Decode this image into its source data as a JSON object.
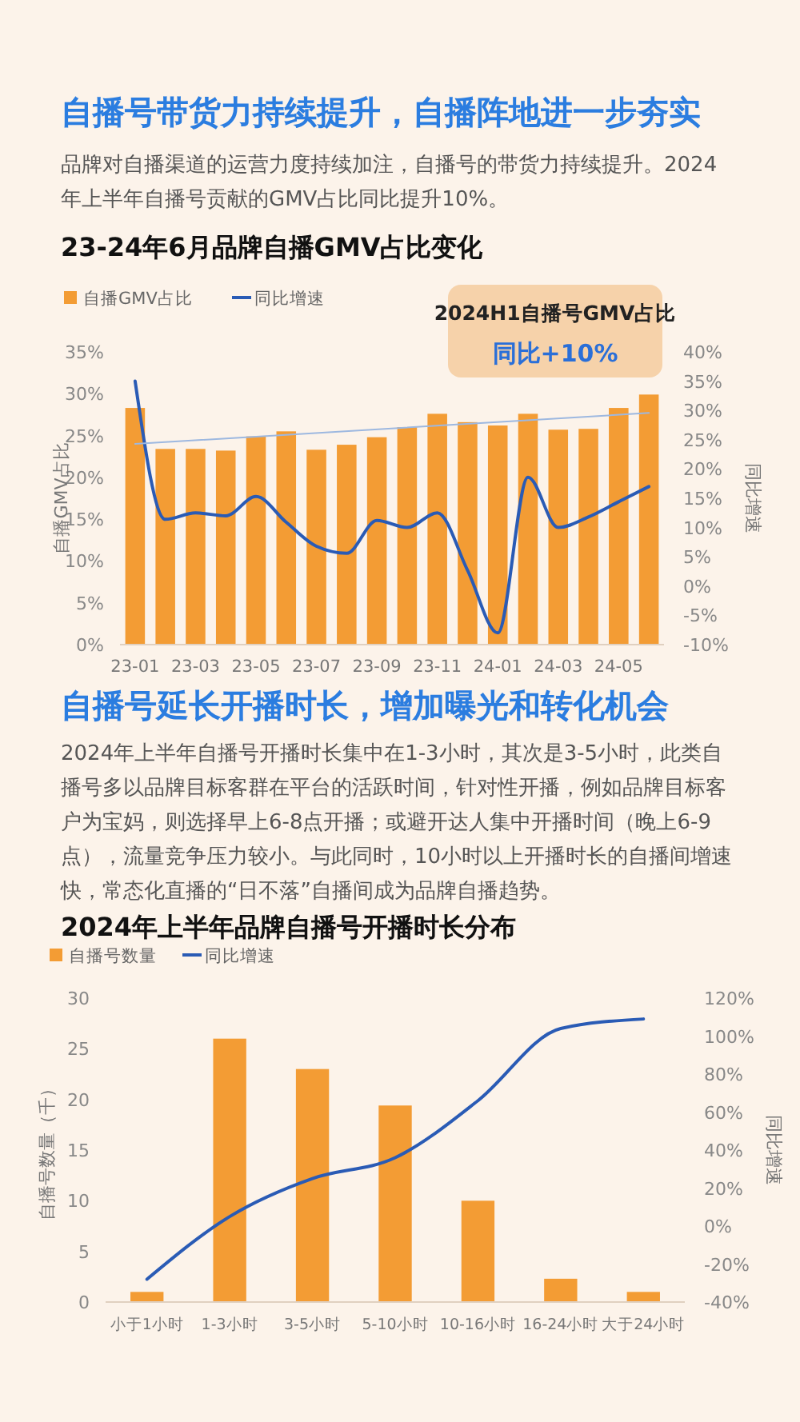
{
  "chart_data": [
    {
      "type": "bar",
      "title": "23-24年6月品牌自播GMV占比变化",
      "annotations": [
        "自播号带货力持续提升，自播阵地进一步夯实",
        "品牌对自播渠道的运营力度持续加注，自播号的带货力持续提升。2024年上半年自播号贡献的GMV占比同比提升10%。",
        "2024H1自播号GMV占比",
        "同比+10%"
      ],
      "ylabel": "自播GMV占比",
      "y2label": "同比增速",
      "legend": "top left",
      "grid": false,
      "marker": "none",
      "categories": [
        "23-01",
        null,
        "23-03",
        null,
        "23-05",
        null,
        "23-07",
        null,
        "23-09",
        null,
        "23-11",
        null,
        "24-01",
        null,
        "24-03",
        null,
        "24-05",
        null
      ],
      "ylim": [
        0,
        35
      ],
      "yticks": [
        {
          "value": 0,
          "label": "0%"
        },
        {
          "value": 5,
          "label": "5%"
        },
        {
          "value": 10,
          "label": "10%"
        },
        {
          "value": 15,
          "label": "15%"
        },
        {
          "value": 20,
          "label": "20%"
        },
        {
          "value": 25,
          "label": "25%"
        },
        {
          "value": 30,
          "label": "30%"
        },
        {
          "value": 35,
          "label": "35%"
        }
      ],
      "y2lim": [
        -10,
        40
      ],
      "y2ticks": [
        {
          "value": -10,
          "label": "-10%"
        },
        {
          "value": -5,
          "label": "-5%"
        },
        {
          "value": 0,
          "label": "0%"
        },
        {
          "value": 5,
          "label": "5%"
        },
        {
          "value": 10,
          "label": "10%"
        },
        {
          "value": 15,
          "label": "15%"
        },
        {
          "value": 20,
          "label": "20%"
        },
        {
          "value": 25,
          "label": "25%"
        },
        {
          "value": 30,
          "label": "30%"
        },
        {
          "value": 35,
          "label": "35%"
        },
        {
          "value": 40,
          "label": "40%"
        }
      ],
      "series": [
        {
          "name": "自播GMV占比",
          "color": "#f39c34",
          "values": [
            28.3,
            23.4,
            23.4,
            23.2,
            24.9,
            25.5,
            23.3,
            23.9,
            24.8,
            26.0,
            27.6,
            26.6,
            26.2,
            27.6,
            25.7,
            25.8,
            28.3,
            29.9
          ]
        },
        {
          "name": "同比增速",
          "type": "line",
          "axis": "y2",
          "color": "#2a5bb5",
          "values": [
            35,
            11.4,
            12.5,
            12,
            15.3,
            10.9,
            6.8,
            5.6,
            11.2,
            10,
            12.5,
            2.7,
            -8,
            18.6,
            10,
            11.8,
            14.4,
            17
          ]
        },
        {
          "type": "line",
          "color": "#9db8e0",
          "values": [
            24,
            null,
            null,
            null,
            null,
            null,
            null,
            null,
            null,
            null,
            null,
            null,
            null,
            null,
            null,
            null,
            null,
            27.7
          ]
        }
      ]
    },
    {
      "type": "bar",
      "title": "2024年上半年品牌自播号开播时长分布",
      "annotations": [
        "自播号延长开播时长，增加曝光和转化机会",
        "2024年上半年自播号开播时长集中在1-3小时，其次是3-5小时，此类自播号多以品牌目标客群在平台的活跃时间，针对性开播，例如品牌目标客户为宝妈，则选择早上6-8点开播；或避开达人集中开播时间（晚上6-9点），流量竞争压力较小。与此同时，10小时以上开播时长的自播间增速快，常态化直播的“日不落”自播间成为品牌自播趋势。"
      ],
      "ylabel": "自播号数量（千）",
      "y2label": "同比增速",
      "legend": "top left",
      "grid": false,
      "marker": "none",
      "categories": [
        "小于1小时",
        "1-3小时",
        "3-5小时",
        "5-10小时",
        "10-16小时",
        "16-24小时",
        "大于24小时"
      ],
      "ylim": [
        0,
        30
      ],
      "yticks": [
        0,
        5,
        10,
        15,
        20,
        25,
        30
      ],
      "y2lim": [
        -40,
        120
      ],
      "y2ticks": [
        {
          "value": -40,
          "label": "-40%"
        },
        {
          "value": -20,
          "label": "-20%"
        },
        {
          "value": 0,
          "label": "0%"
        },
        {
          "value": 20,
          "label": "20%"
        },
        {
          "value": 40,
          "label": "40%"
        },
        {
          "value": 60,
          "label": "60%"
        },
        {
          "value": 80,
          "label": "80%"
        },
        {
          "value": 100,
          "label": "100%"
        },
        {
          "value": 120,
          "label": "120%"
        }
      ],
      "series": [
        {
          "name": "自播号数量",
          "color": "#f39c34",
          "values": [
            1,
            26,
            23,
            19.4,
            10,
            2.3,
            1
          ]
        },
        {
          "name": "同比增速",
          "type": "line",
          "axis": "y2",
          "color": "#2a5bb5",
          "values": [
            -28,
            5,
            25,
            36,
            66,
            104,
            109
          ]
        }
      ]
    }
  ]
}
